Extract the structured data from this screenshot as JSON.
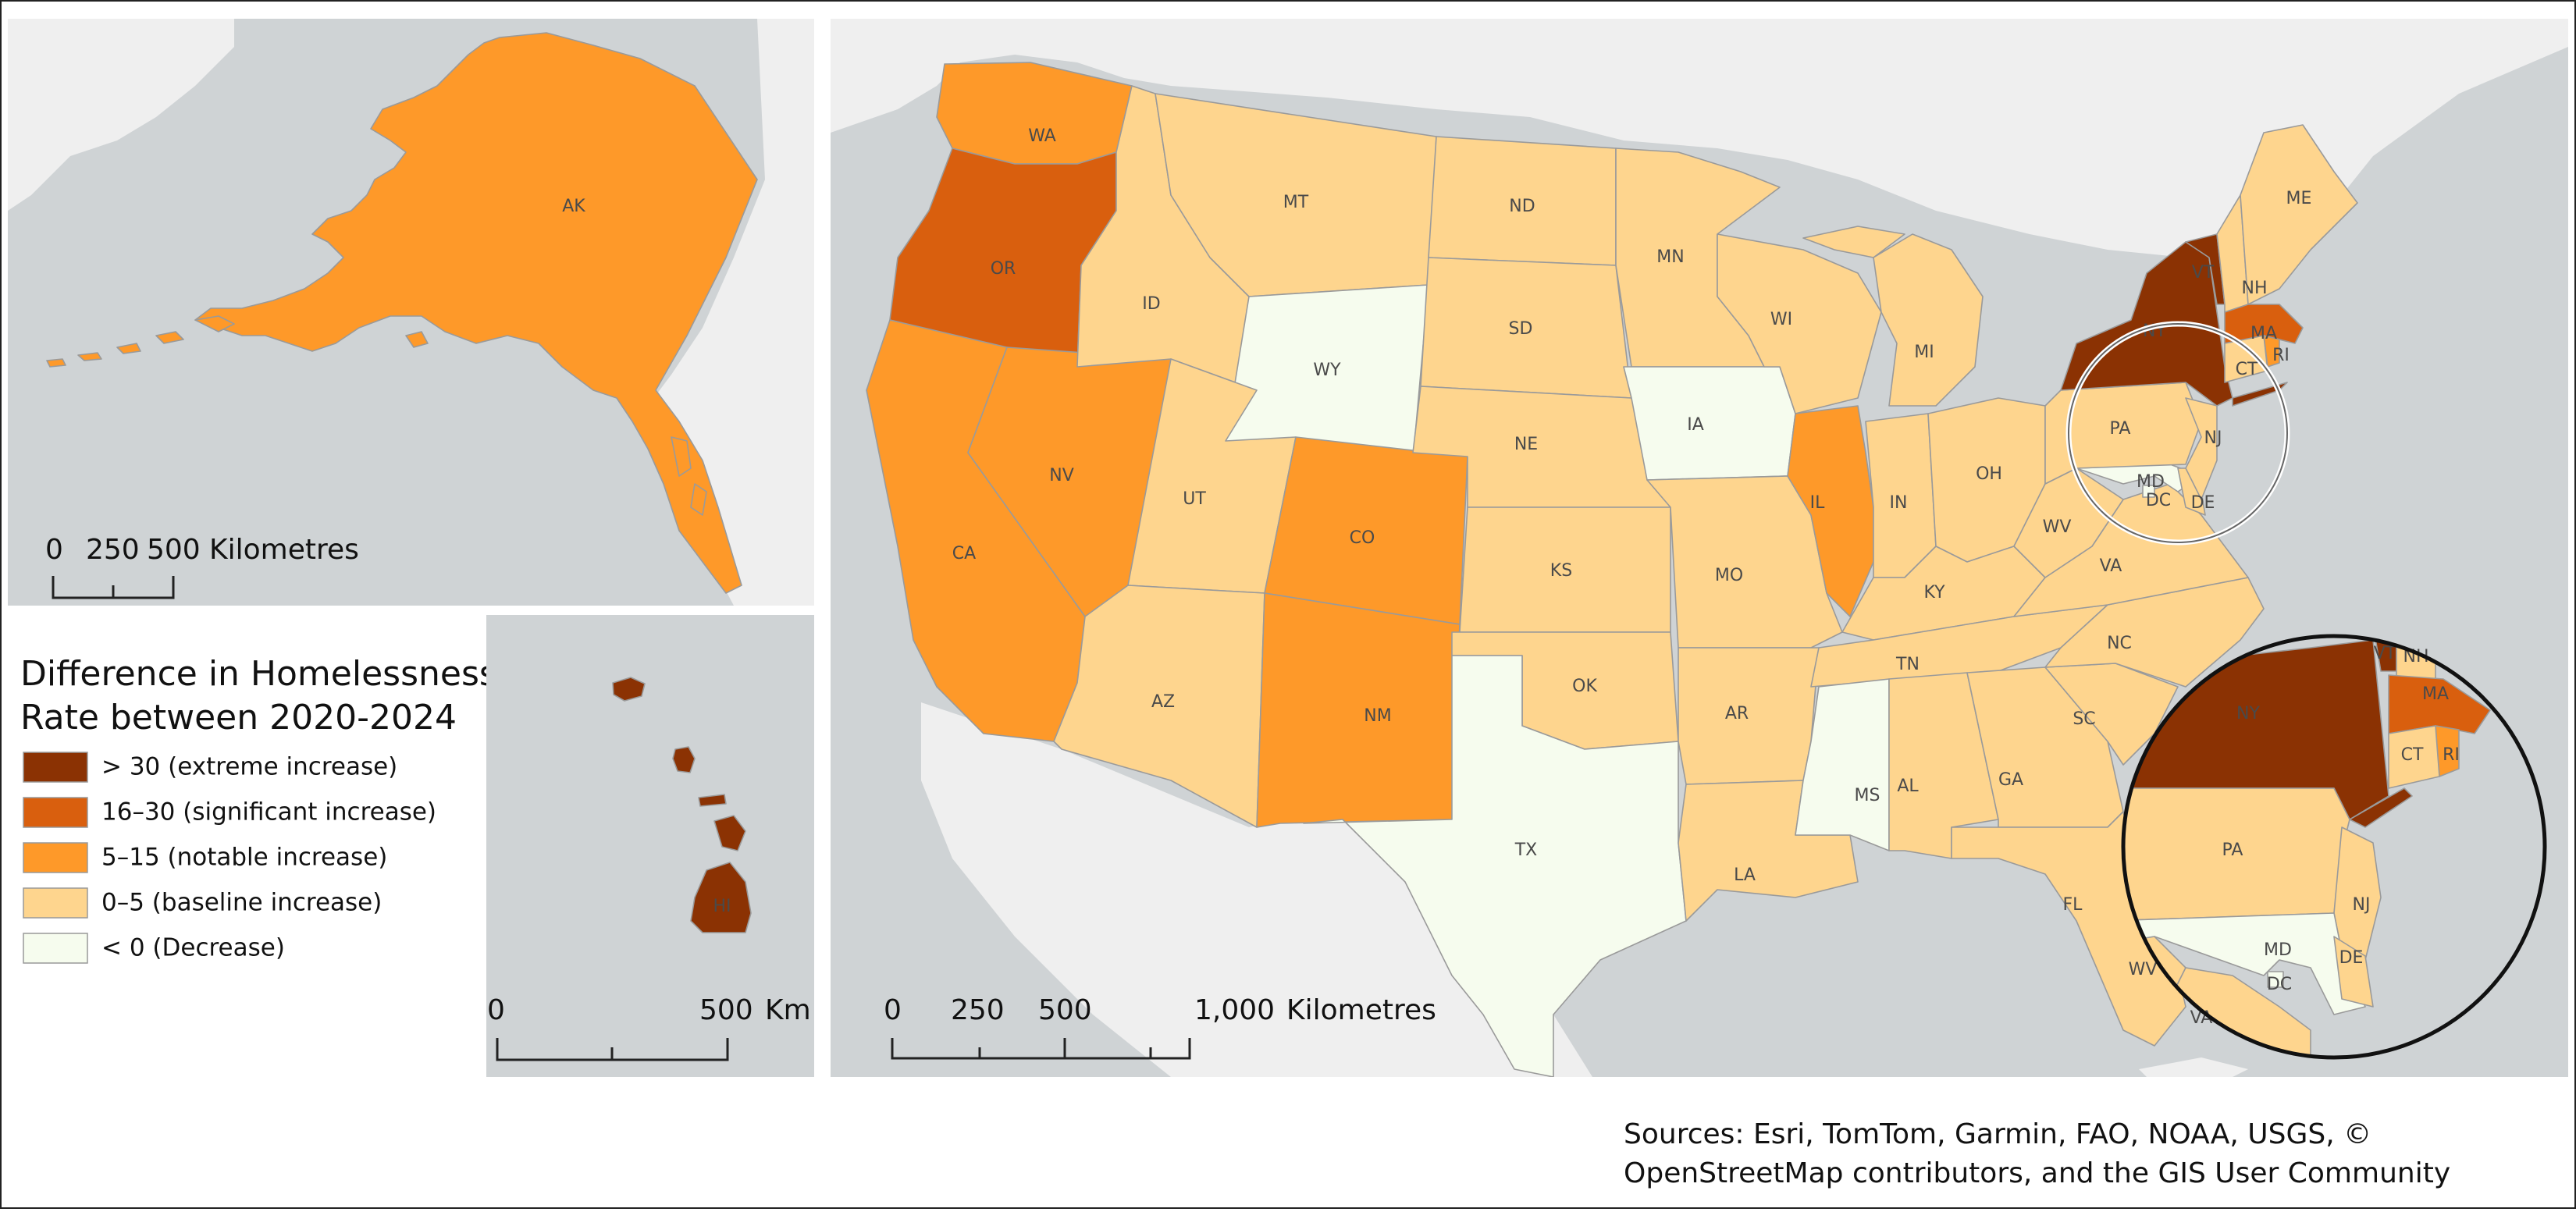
{
  "colors": {
    "extreme": "#8b3203",
    "significant": "#d95f0e",
    "notable": "#fe9929",
    "baseline": "#fed58e",
    "decrease": "#f6fcee",
    "water": "#cfd3d5",
    "land": "#efefef"
  },
  "legend": {
    "title_line1": "Difference in Homelessness",
    "title_line2": "Rate between 2020-2024",
    "classes": [
      {
        "key": "extreme",
        "label": "> 30 (extreme increase)"
      },
      {
        "key": "significant",
        "label": "16–30 (significant increase)"
      },
      {
        "key": "notable",
        "label": "5–15  (notable increase)"
      },
      {
        "key": "baseline",
        "label": "0–5  (baseline increase)"
      },
      {
        "key": "decrease",
        "label": "< 0 (Decrease)"
      }
    ]
  },
  "states": {
    "WA": "notable",
    "OR": "significant",
    "CA": "notable",
    "NV": "notable",
    "ID": "baseline",
    "MT": "baseline",
    "WY": "decrease",
    "UT": "baseline",
    "AZ": "baseline",
    "CO": "notable",
    "NM": "notable",
    "ND": "baseline",
    "SD": "baseline",
    "NE": "baseline",
    "KS": "baseline",
    "OK": "baseline",
    "TX": "decrease",
    "MN": "baseline",
    "IA": "decrease",
    "MO": "baseline",
    "AR": "baseline",
    "LA": "baseline",
    "WI": "baseline",
    "IL": "notable",
    "MI": "baseline",
    "IN": "baseline",
    "OH": "baseline",
    "KY": "baseline",
    "TN": "baseline",
    "MS": "decrease",
    "AL": "baseline",
    "GA": "baseline",
    "FL": "baseline",
    "SC": "baseline",
    "NC": "baseline",
    "VA": "baseline",
    "WV": "baseline",
    "PA": "baseline",
    "NY": "extreme",
    "VT": "extreme",
    "NH": "baseline",
    "ME": "baseline",
    "MA": "significant",
    "RI": "notable",
    "CT": "baseline",
    "NJ": "baseline",
    "DE": "baseline",
    "MD": "decrease",
    "DC": "decrease",
    "AK": "notable",
    "HI": "extreme"
  },
  "state_labels": {
    "WA": "WA",
    "OR": "OR",
    "CA": "CA",
    "NV": "NV",
    "ID": "ID",
    "MT": "MT",
    "WY": "WY",
    "UT": "UT",
    "AZ": "AZ",
    "CO": "CO",
    "NM": "NM",
    "ND": "ND",
    "SD": "SD",
    "NE": "NE",
    "KS": "KS",
    "OK": "OK",
    "TX": "TX",
    "MN": "MN",
    "IA": "IA",
    "MO": "MO",
    "AR": "AR",
    "LA": "LA",
    "WI": "WI",
    "IL": "IL",
    "MI": "MI",
    "IN": "IN",
    "OH": "OH",
    "KY": "KY",
    "TN": "TN",
    "MS": "MS",
    "AL": "AL",
    "GA": "GA",
    "FL": "FL",
    "SC": "SC",
    "NC": "NC",
    "VA": "VA",
    "WV": "WV",
    "PA": "PA",
    "NY": "NY",
    "VT": "VT",
    "NH": "NH",
    "ME": "ME",
    "MA": "MA",
    "RI": "RI",
    "CT": "CT",
    "NJ": "NJ",
    "DE": "DE",
    "MD": "MD",
    "DC": "DC",
    "AK": "AK",
    "HI": "HI"
  },
  "scalebars": {
    "alaska": {
      "t0": "0",
      "t1": "250",
      "t2": "500",
      "unit": "Kilometres"
    },
    "hawaii": {
      "t0": "0",
      "t1": "500",
      "unit": "Km"
    },
    "conus": {
      "t0": "0",
      "t1": "250",
      "t2": "500",
      "t3": "1,000",
      "unit": "Kilometres"
    }
  },
  "sources": {
    "line1": "Sources: Esri, TomTom, Garmin, FAO, NOAA, USGS, ©",
    "line2": "OpenStreetMap contributors, and the GIS User Community"
  }
}
